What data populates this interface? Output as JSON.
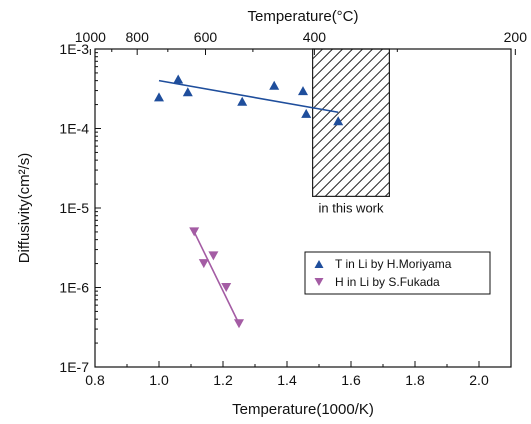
{
  "chart_data": {
    "type": "scatter",
    "title": "",
    "xlabel": "Temperature(1000/K)",
    "ylabel": "Diffusivity(cm²/s)",
    "top_xlabel": "Temperature(°C)",
    "xlim": [
      0.8,
      2.1
    ],
    "ylim": [
      1e-07,
      0.001
    ],
    "yscale": "log",
    "grid": false,
    "legend_position": "right",
    "x_ticks": [
      0.8,
      1.0,
      1.2,
      1.4,
      1.6,
      1.8,
      2.0
    ],
    "x_tick_labels": [
      "0.8",
      "1.0",
      "1.2",
      "1.4",
      "1.6",
      "1.8",
      "2.0"
    ],
    "y_ticks": [
      1e-07,
      1e-06,
      1e-05,
      0.0001,
      0.001
    ],
    "y_tick_labels": [
      "1E-7",
      "1E-6",
      "1E-5",
      "1E-4",
      "1E-3"
    ],
    "top_ticks_celsius": [
      1000,
      800,
      600,
      400,
      200
    ],
    "top_tick_labels": [
      "1000",
      "800",
      "600",
      "400",
      "200"
    ],
    "series": [
      {
        "name": "T in Li by H.Moriyama",
        "marker": "triangle-up",
        "color": "#1f4e9c",
        "x": [
          1.0,
          1.06,
          1.09,
          1.26,
          1.36,
          1.45,
          1.46,
          1.56
        ],
        "y": [
          0.00025,
          0.00042,
          0.00029,
          0.00022,
          0.00035,
          0.0003,
          0.000155,
          0.000125
        ],
        "fit": {
          "x": [
            1.0,
            1.56
          ],
          "y": [
            0.0004,
            0.00016
          ]
        }
      },
      {
        "name": "H in Li by S.Fukada",
        "marker": "triangle-down",
        "color": "#a45ca4",
        "x": [
          1.11,
          1.14,
          1.17,
          1.21,
          1.25
        ],
        "y": [
          5e-06,
          2e-06,
          2.5e-06,
          1e-06,
          3.5e-07
        ],
        "fit": {
          "x": [
            1.11,
            1.25
          ],
          "y": [
            5e-06,
            3.5e-07
          ]
        }
      }
    ],
    "annotations": [
      {
        "text": "in this work",
        "x_range": [
          1.48,
          1.72
        ],
        "y_range": [
          1.4e-05,
          0.001
        ],
        "pattern": "hatched"
      }
    ]
  }
}
